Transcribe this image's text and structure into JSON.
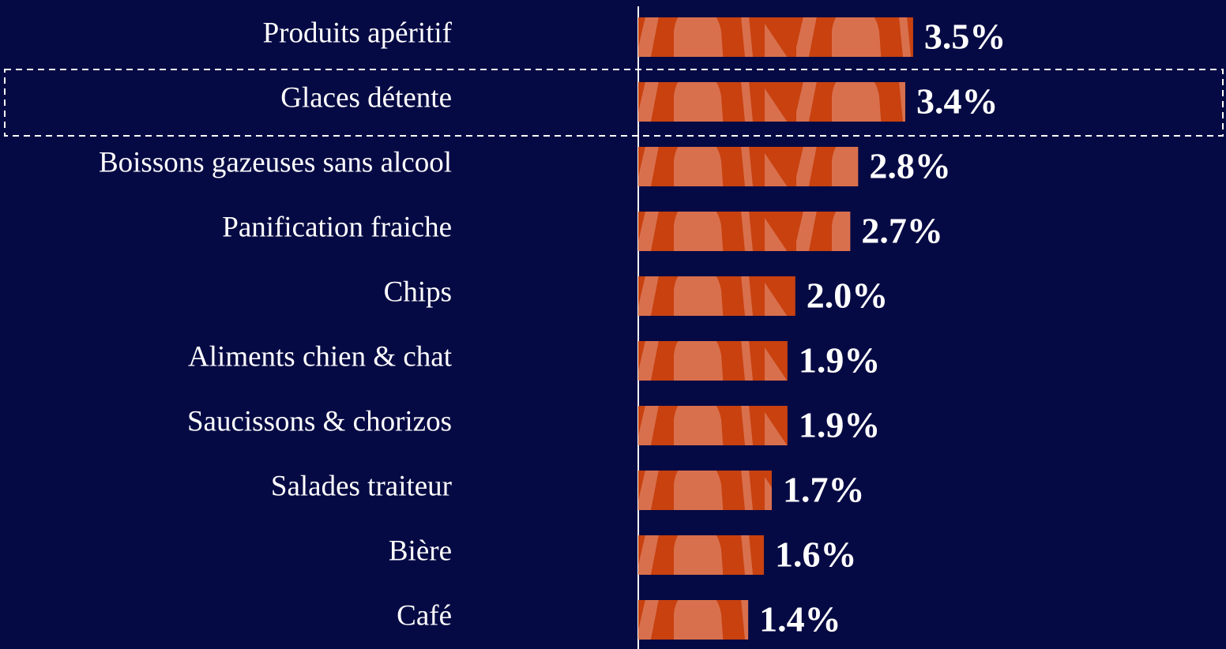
{
  "chart_data": {
    "type": "bar",
    "orientation": "horizontal",
    "categories": [
      "Produits apéritif",
      "Glaces détente",
      "Boissons gazeuses sans alcool",
      "Panification fraiche",
      "Chips",
      "Aliments chien & chat",
      "Saucissons & chorizos",
      "Salades traiteur",
      "Bière",
      "Café"
    ],
    "values": [
      3.5,
      3.4,
      2.8,
      2.7,
      2.0,
      1.9,
      1.9,
      1.7,
      1.6,
      1.4
    ],
    "value_labels": [
      "3.5%",
      "3.4%",
      "2.8%",
      "2.7%",
      "2.0%",
      "1.9%",
      "1.9%",
      "1.7%",
      "1.6%",
      "1.4%"
    ],
    "color": "#c8410f"
  }
}
